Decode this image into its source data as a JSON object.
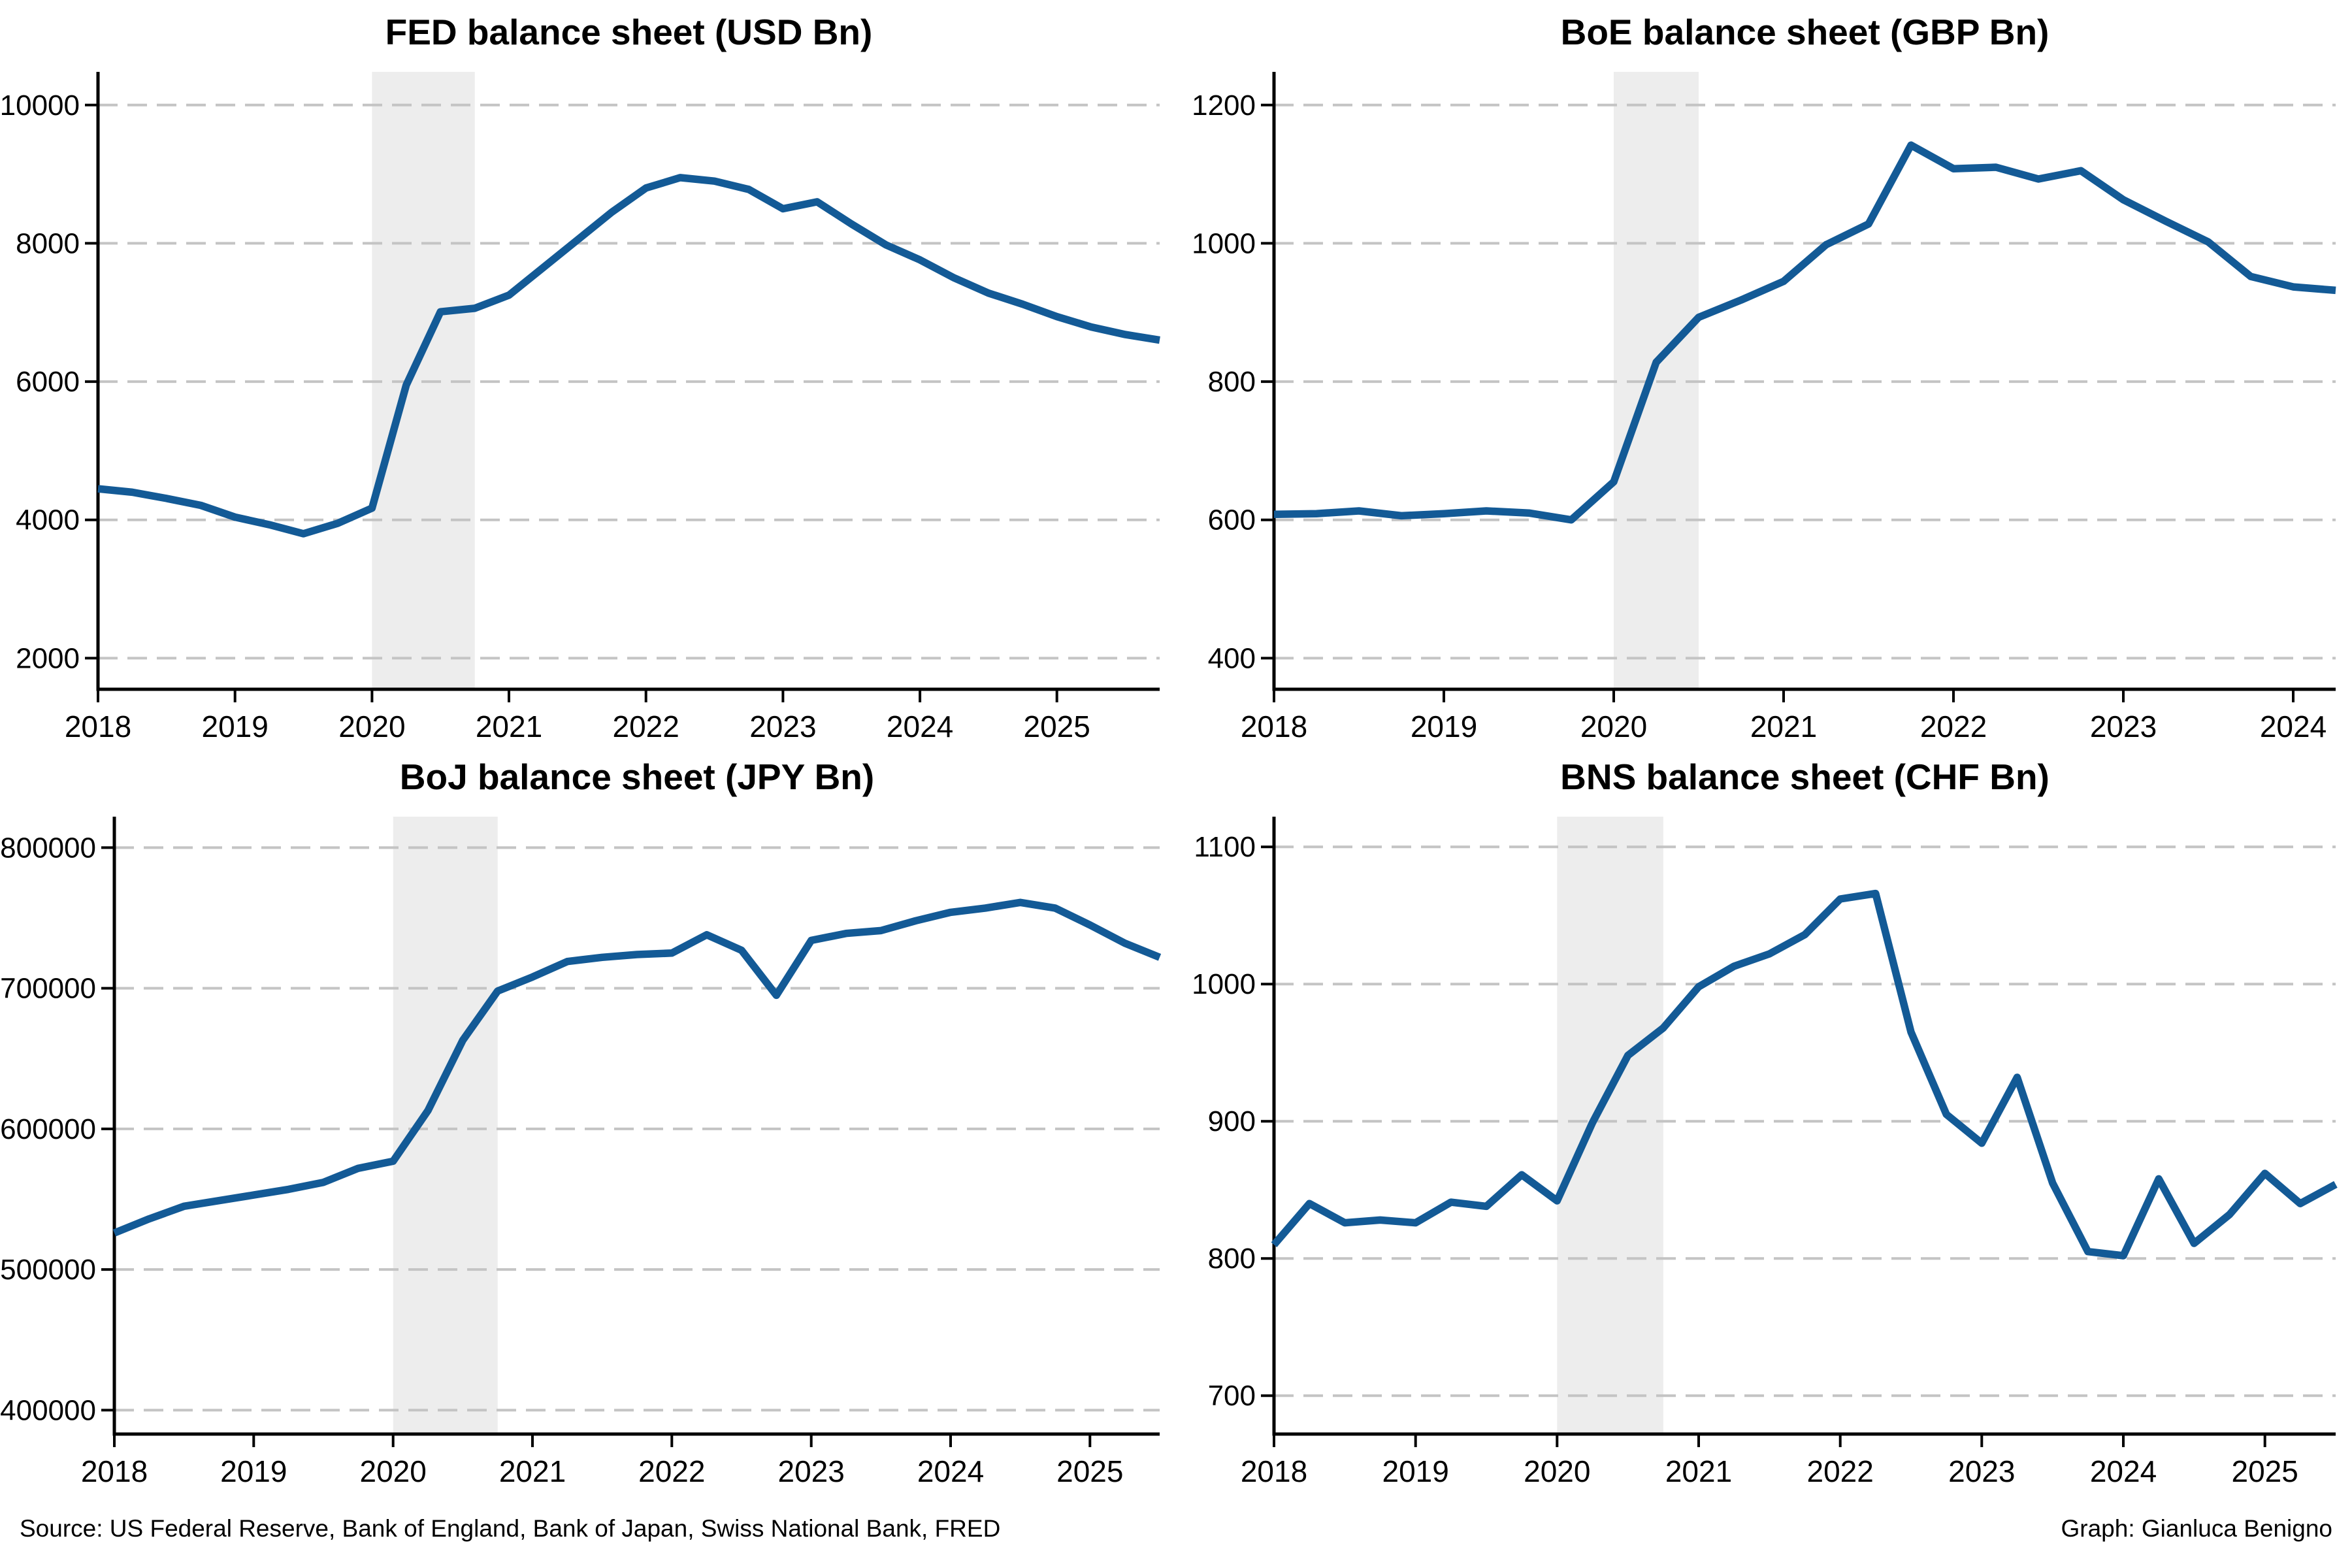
{
  "page": {
    "background": "#ffffff"
  },
  "style": {
    "line_color": "#135a96",
    "grid_color": "#c4c4c4",
    "band_color": "#ededed",
    "axis_color": "#000000",
    "text_color": "#000000"
  },
  "footer": {
    "source": "Source: US Federal Reserve, Bank of England, Bank of Japan, Swiss National Bank, FRED",
    "credit": "Graph: Gianluca Benigno"
  },
  "chart_data": [
    {
      "type": "line",
      "title": "FED balance sheet (USD Bn)",
      "xlabel": "",
      "ylabel": "",
      "legend": "none",
      "grid": "horizontal-dashed",
      "xlim": [
        2018,
        2025.75
      ],
      "ylim": [
        1550,
        10480
      ],
      "x_ticks": [
        2018,
        2019,
        2020,
        2021,
        2022,
        2023,
        2024,
        2025
      ],
      "y_ticks": [
        2000,
        4000,
        6000,
        8000,
        10000
      ],
      "shaded_x": [
        2020,
        2020.75
      ],
      "x": [
        2018,
        2018.25,
        2018.5,
        2018.75,
        2019,
        2019.25,
        2019.5,
        2019.75,
        2020,
        2020.25,
        2020.5,
        2020.75,
        2021,
        2021.25,
        2021.5,
        2021.75,
        2022,
        2022.25,
        2022.5,
        2022.75,
        2023,
        2023.25,
        2023.5,
        2023.75,
        2024,
        2024.25,
        2024.5,
        2024.75,
        2025,
        2025.25,
        2025.5,
        2025.75
      ],
      "values": [
        4450,
        4400,
        4310,
        4210,
        4040,
        3930,
        3800,
        3950,
        4170,
        5950,
        7010,
        7060,
        7250,
        7650,
        8050,
        8450,
        8800,
        8950,
        8900,
        8780,
        8500,
        8600,
        8280,
        7980,
        7760,
        7500,
        7280,
        7120,
        6940,
        6790,
        6680,
        6600
      ]
    },
    {
      "type": "line",
      "title": "BoE balance sheet (GBP Bn)",
      "xlabel": "",
      "ylabel": "",
      "legend": "none",
      "grid": "horizontal-dashed",
      "xlim": [
        2018,
        2024.25
      ],
      "ylim": [
        355,
        1248
      ],
      "x_ticks": [
        2018,
        2019,
        2020,
        2021,
        2022,
        2023,
        2024
      ],
      "y_ticks": [
        400,
        600,
        800,
        1000,
        1200
      ],
      "shaded_x": [
        2020,
        2020.5
      ],
      "x": [
        2018,
        2018.25,
        2018.5,
        2018.75,
        2019,
        2019.25,
        2019.5,
        2019.75,
        2020,
        2020.25,
        2020.5,
        2020.75,
        2021,
        2021.25,
        2021.5,
        2021.75,
        2022,
        2022.25,
        2022.5,
        2022.75,
        2023,
        2023.25,
        2023.5,
        2023.75,
        2024,
        2024.25
      ],
      "values": [
        608,
        609,
        613,
        606,
        609,
        613,
        610,
        600,
        655,
        828,
        893,
        918,
        945,
        998,
        1028,
        1142,
        1108,
        1110,
        1093,
        1105,
        1063,
        1032,
        1002,
        952,
        937,
        932
      ]
    },
    {
      "type": "line",
      "title": "BoJ balance sheet (JPY Bn)",
      "xlabel": "",
      "ylabel": "",
      "legend": "none",
      "grid": "horizontal-dashed",
      "xlim": [
        2018,
        2025.5
      ],
      "ylim": [
        383000,
        822000
      ],
      "x_ticks": [
        2018,
        2019,
        2020,
        2021,
        2022,
        2023,
        2024,
        2025
      ],
      "y_ticks": [
        400000,
        500000,
        600000,
        700000,
        800000
      ],
      "shaded_x": [
        2020,
        2020.75
      ],
      "x": [
        2018,
        2018.25,
        2018.5,
        2018.75,
        2019,
        2019.25,
        2019.5,
        2019.75,
        2020,
        2020.25,
        2020.5,
        2020.75,
        2021,
        2021.25,
        2021.5,
        2021.75,
        2022,
        2022.25,
        2022.5,
        2022.75,
        2023,
        2023.25,
        2023.5,
        2023.75,
        2024,
        2024.25,
        2024.5,
        2024.75,
        2025,
        2025.25,
        2025.5
      ],
      "values": [
        526000,
        536000,
        545000,
        549000,
        553000,
        557000,
        562000,
        572000,
        577000,
        613000,
        663000,
        698000,
        708000,
        719000,
        722000,
        724000,
        725000,
        738000,
        727000,
        695000,
        734000,
        739000,
        741000,
        748000,
        754000,
        757000,
        761000,
        757000,
        745000,
        732000,
        722000
      ]
    },
    {
      "type": "line",
      "title": "BNS balance sheet (CHF Bn)",
      "xlabel": "",
      "ylabel": "",
      "legend": "none",
      "grid": "horizontal-dashed",
      "xlim": [
        2018,
        2025.5
      ],
      "ylim": [
        672,
        1122
      ],
      "x_ticks": [
        2018,
        2019,
        2020,
        2021,
        2022,
        2023,
        2024,
        2025
      ],
      "y_ticks": [
        700,
        800,
        900,
        1000,
        1100
      ],
      "shaded_x": [
        2020,
        2020.75
      ],
      "x": [
        2018,
        2018.25,
        2018.5,
        2018.75,
        2019,
        2019.25,
        2019.5,
        2019.75,
        2020,
        2020.25,
        2020.5,
        2020.75,
        2021,
        2021.25,
        2021.5,
        2021.75,
        2022,
        2022.25,
        2022.5,
        2022.75,
        2023,
        2023.25,
        2023.5,
        2023.75,
        2024,
        2024.25,
        2024.5,
        2024.75,
        2025,
        2025.25,
        2025.5
      ],
      "values": [
        810,
        840,
        826,
        828,
        826,
        841,
        838,
        861,
        842,
        899,
        948,
        968,
        998,
        1013,
        1022,
        1036,
        1062,
        1066,
        965,
        905,
        884,
        932,
        855,
        805,
        802,
        858,
        811,
        832,
        862,
        840,
        854
      ]
    }
  ]
}
